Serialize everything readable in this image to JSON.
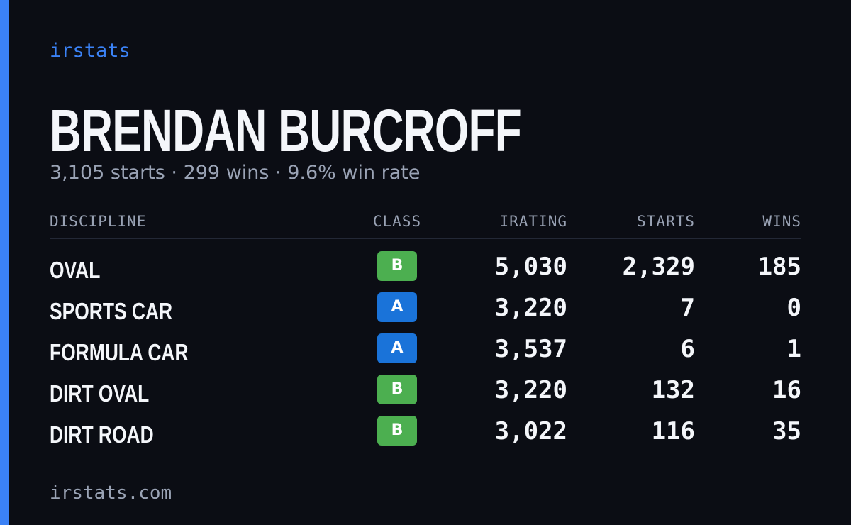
{
  "brand": "irstats",
  "name": "BRENDAN BURCROFF",
  "summary": "3,105 starts · 299 wins · 9.6% win rate",
  "table": {
    "headers": [
      "DISCIPLINE",
      "CLASS",
      "IRATING",
      "STARTS",
      "WINS"
    ],
    "rows": [
      {
        "discipline": "OVAL",
        "class": "B",
        "badge_color": "#4caf50",
        "irating": "5,030",
        "starts": "2,329",
        "wins": "185"
      },
      {
        "discipline": "SPORTS CAR",
        "class": "A",
        "badge_color": "#1a73d9",
        "irating": "3,220",
        "starts": "7",
        "wins": "0"
      },
      {
        "discipline": "FORMULA CAR",
        "class": "A",
        "badge_color": "#1a73d9",
        "irating": "3,537",
        "starts": "6",
        "wins": "1"
      },
      {
        "discipline": "DIRT OVAL",
        "class": "B",
        "badge_color": "#4caf50",
        "irating": "3,220",
        "starts": "132",
        "wins": "16"
      },
      {
        "discipline": "DIRT ROAD",
        "class": "B",
        "badge_color": "#4caf50",
        "irating": "3,022",
        "starts": "116",
        "wins": "35"
      }
    ]
  },
  "footer": "irstats.com"
}
